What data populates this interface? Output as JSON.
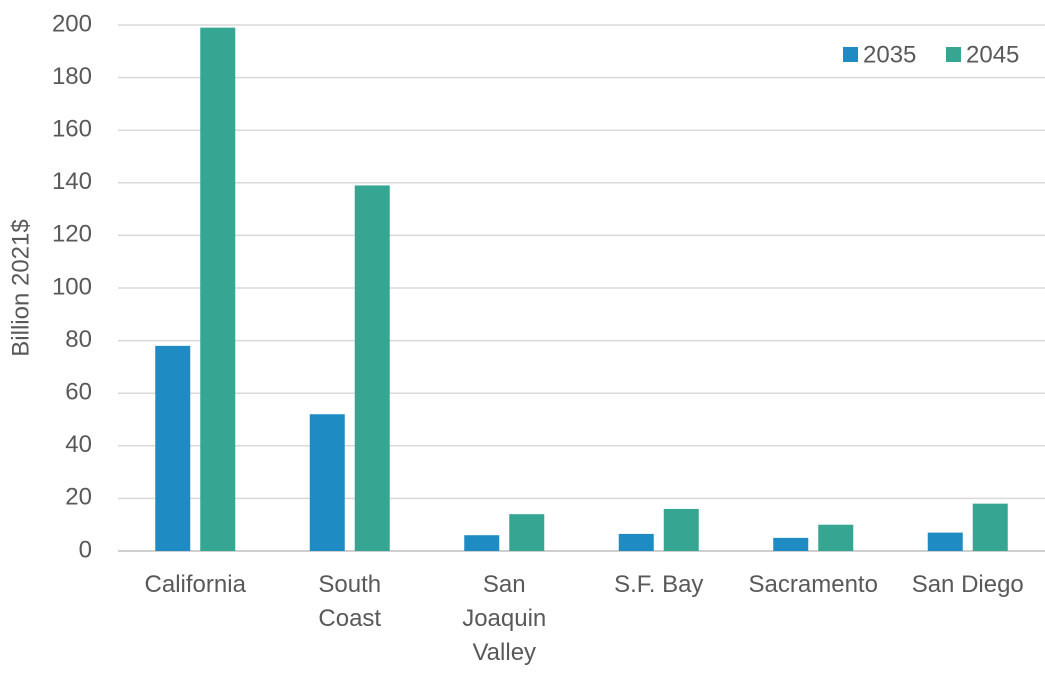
{
  "chart_data": {
    "type": "bar",
    "y_label": "Billion 2021$",
    "categories": [
      "California",
      "South\nCoast",
      "San\nJoaquin\nValley",
      "S.F. Bay",
      "Sacramento",
      "San Diego"
    ],
    "series": [
      {
        "name": "2035",
        "color": "#1f8bc3",
        "values": [
          78,
          52,
          6,
          6.5,
          5,
          7
        ]
      },
      {
        "name": "2045",
        "color": "#36a592",
        "values": [
          199,
          139,
          14,
          16,
          10,
          18
        ]
      }
    ],
    "ylim": [
      0,
      200
    ],
    "yticks": [
      0,
      20,
      40,
      60,
      80,
      100,
      120,
      140,
      160,
      180,
      200
    ],
    "grid": true,
    "legend": "top-right"
  }
}
